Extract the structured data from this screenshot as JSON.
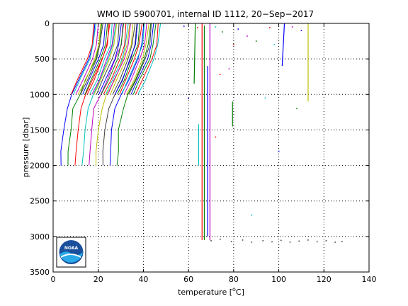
{
  "chart_data": {
    "type": "line",
    "title": "WMO ID 5900701, internal ID 1112, 20−Sep−2017",
    "xlabel_pre": "temperature [",
    "xlabel_deg": "o",
    "xlabel_post": "C]",
    "ylabel": "pressure [dbar]",
    "xlim": [
      0,
      140
    ],
    "ylim": [
      3500,
      0
    ],
    "y_reversed": true,
    "grid": "dotted",
    "xticks": [
      0,
      20,
      40,
      60,
      80,
      100,
      120,
      140
    ],
    "yticks": [
      0,
      500,
      1000,
      1500,
      2000,
      2500,
      3000,
      3500
    ],
    "xtick_labels": [
      "0",
      "20",
      "40",
      "60",
      "80",
      "100",
      "120",
      "140"
    ],
    "ytick_labels": [
      "0",
      "500",
      "1000",
      "1500",
      "2000",
      "2500",
      "3000",
      "3500"
    ],
    "palette": [
      "#0000ff",
      "#008000",
      "#ff0000",
      "#00bfbf",
      "#bf00bf",
      "#bfbf00",
      "#404040"
    ],
    "profile_families": [
      {
        "name": "deep",
        "count": 9,
        "x_start": 3.5,
        "x_step": 3.1,
        "y": [
          2000,
          1800,
          1500,
          1200,
          1000,
          800,
          500,
          300,
          0
        ],
        "dx": [
          0,
          0.3,
          1.0,
          2.5,
          5.0,
          8.0,
          12.0,
          14.0,
          15.0
        ]
      },
      {
        "name": "shallow",
        "count": 30,
        "x_start": 8.0,
        "x_step": 1.02,
        "y": [
          1000,
          800,
          500,
          300,
          0
        ],
        "dx": [
          0,
          3.0,
          7.0,
          9.0,
          10.0
        ]
      }
    ],
    "outlier_segments": [
      {
        "x": [
          62.5,
          63.0
        ],
        "y": [
          850,
          0
        ],
        "color": "#008000"
      },
      {
        "x": [
          64.5,
          64.5
        ],
        "y": [
          2000,
          1420
        ],
        "color": "#00bfbf"
      },
      {
        "x": [
          66.0,
          66.0
        ],
        "y": [
          3050,
          0
        ],
        "color": "#ff0000"
      },
      {
        "x": [
          67.0,
          67.0
        ],
        "y": [
          3050,
          30
        ],
        "color": "#008000"
      },
      {
        "x": [
          68.5,
          68.5
        ],
        "y": [
          3000,
          600
        ],
        "color": "#0000ff"
      },
      {
        "x": [
          69.5,
          69.5
        ],
        "y": [
          3050,
          0
        ],
        "color": "#bf00bf"
      },
      {
        "x": [
          79.5,
          79.5
        ],
        "y": [
          1450,
          1100
        ],
        "color": "#008000"
      },
      {
        "x": [
          101.5,
          102.5
        ],
        "y": [
          600,
          0
        ],
        "color": "#0000ff"
      },
      {
        "x": [
          113.0,
          113.0
        ],
        "y": [
          1100,
          0
        ],
        "color": "#bfbf00"
      }
    ],
    "outlier_points": [
      {
        "x": 58,
        "y": 40,
        "color": "#0000ff"
      },
      {
        "x": 64,
        "y": 60,
        "color": "#ff0000"
      },
      {
        "x": 72,
        "y": 50,
        "color": "#00bfbf"
      },
      {
        "x": 75,
        "y": 120,
        "color": "#008000"
      },
      {
        "x": 80,
        "y": 300,
        "color": "#ff0000"
      },
      {
        "x": 82,
        "y": 80,
        "color": "#0000ff"
      },
      {
        "x": 86,
        "y": 180,
        "color": "#bf00bf"
      },
      {
        "x": 90,
        "y": 250,
        "color": "#008000"
      },
      {
        "x": 96,
        "y": 60,
        "color": "#ff0000"
      },
      {
        "x": 98,
        "y": 300,
        "color": "#00bfbf"
      },
      {
        "x": 106,
        "y": 50,
        "color": "#bf00bf"
      },
      {
        "x": 110,
        "y": 100,
        "color": "#0000ff"
      },
      {
        "x": 78,
        "y": 640,
        "color": "#bf00bf"
      },
      {
        "x": 74,
        "y": 720,
        "color": "#ff0000"
      },
      {
        "x": 94,
        "y": 1050,
        "color": "#00bfbf"
      },
      {
        "x": 60,
        "y": 1060,
        "color": "#0000ff"
      },
      {
        "x": 108,
        "y": 1200,
        "color": "#008000"
      },
      {
        "x": 72,
        "y": 1600,
        "color": "#ff0000"
      },
      {
        "x": 100,
        "y": 1800,
        "color": "#0000ff"
      },
      {
        "x": 88,
        "y": 2700,
        "color": "#00bfbf"
      },
      {
        "x": 70,
        "y": 3060,
        "color": "#404040"
      },
      {
        "x": 74,
        "y": 3040,
        "color": "#404040"
      },
      {
        "x": 79,
        "y": 3070,
        "color": "#404040"
      },
      {
        "x": 84,
        "y": 3050,
        "color": "#404040"
      },
      {
        "x": 88,
        "y": 3080,
        "color": "#404040"
      },
      {
        "x": 93,
        "y": 3060,
        "color": "#404040"
      },
      {
        "x": 97,
        "y": 3075,
        "color": "#404040"
      },
      {
        "x": 101,
        "y": 3055,
        "color": "#404040"
      },
      {
        "x": 105,
        "y": 3080,
        "color": "#404040"
      },
      {
        "x": 109,
        "y": 3065,
        "color": "#404040"
      },
      {
        "x": 113,
        "y": 3050,
        "color": "#404040"
      },
      {
        "x": 117,
        "y": 3075,
        "color": "#404040"
      },
      {
        "x": 121,
        "y": 3060,
        "color": "#404040"
      },
      {
        "x": 125,
        "y": 3080,
        "color": "#404040"
      },
      {
        "x": 128,
        "y": 3070,
        "color": "#404040"
      }
    ]
  },
  "logo": {
    "name": "noaa-logo",
    "text": "NOAA"
  }
}
